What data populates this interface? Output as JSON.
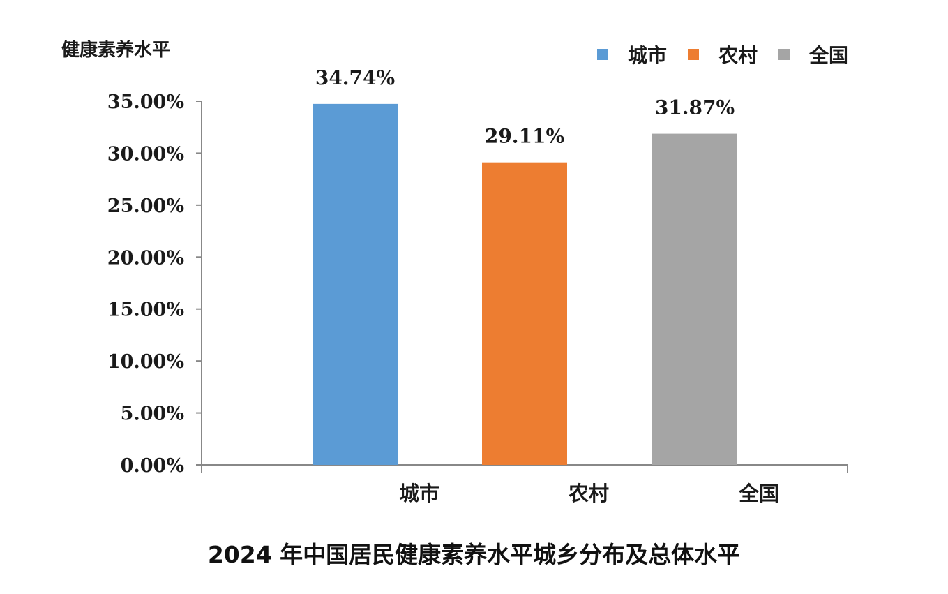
{
  "chart_data": {
    "type": "bar",
    "ylabel": "健康素养水平",
    "categories": [
      "城市",
      "农村",
      "全国"
    ],
    "values": [
      34.74,
      29.11,
      31.87
    ],
    "value_labels": [
      "34.74%",
      "29.11%",
      "31.87%"
    ],
    "colors": [
      "#5b9bd5",
      "#ed7d31",
      "#a5a5a5"
    ],
    "ylim": [
      0,
      35
    ],
    "yticks": [
      0,
      5,
      10,
      15,
      20,
      25,
      30,
      35
    ],
    "ytick_labels": [
      "0.00%",
      "5.00%",
      "10.00%",
      "15.00%",
      "20.00%",
      "25.00%",
      "30.00%",
      "35.00%"
    ],
    "legend": {
      "placement": "top-right",
      "entries": [
        "城市",
        "农村",
        "全国"
      ]
    },
    "grid": false
  },
  "caption": "2024 年中国居民健康素养水平城乡分布及总体水平"
}
